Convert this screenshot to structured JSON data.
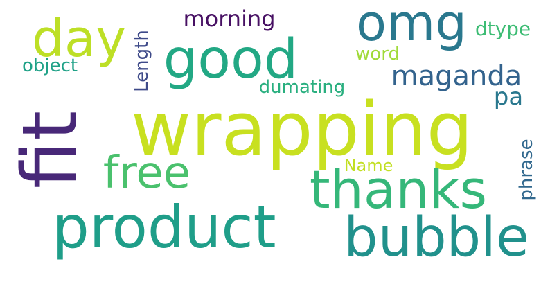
{
  "words": [
    {
      "text": "wrapping",
      "color": "#c8e020"
    },
    {
      "text": "fit",
      "color": "#482878"
    },
    {
      "text": "product",
      "color": "#1f9e89"
    },
    {
      "text": "bubble",
      "color": "#21918c"
    },
    {
      "text": "thanks",
      "color": "#35b779"
    },
    {
      "text": "good",
      "color": "#22a884"
    },
    {
      "text": "omg",
      "color": "#2a788e"
    },
    {
      "text": "day",
      "color": "#bddf26"
    },
    {
      "text": "free",
      "color": "#4ac16d"
    },
    {
      "text": "maganda",
      "color": "#33638d"
    },
    {
      "text": "morning",
      "color": "#471063"
    },
    {
      "text": "dtype",
      "color": "#3dbc74"
    },
    {
      "text": "word",
      "color": "#a0da39"
    },
    {
      "text": "object",
      "color": "#1fa187"
    },
    {
      "text": "Length",
      "color": "#3e4a89"
    },
    {
      "text": "dumating",
      "color": "#29af7f"
    },
    {
      "text": "pa",
      "color": "#2a788e"
    },
    {
      "text": "phrase",
      "color": "#31688e"
    },
    {
      "text": "Name",
      "color": "#c2df23"
    }
  ]
}
